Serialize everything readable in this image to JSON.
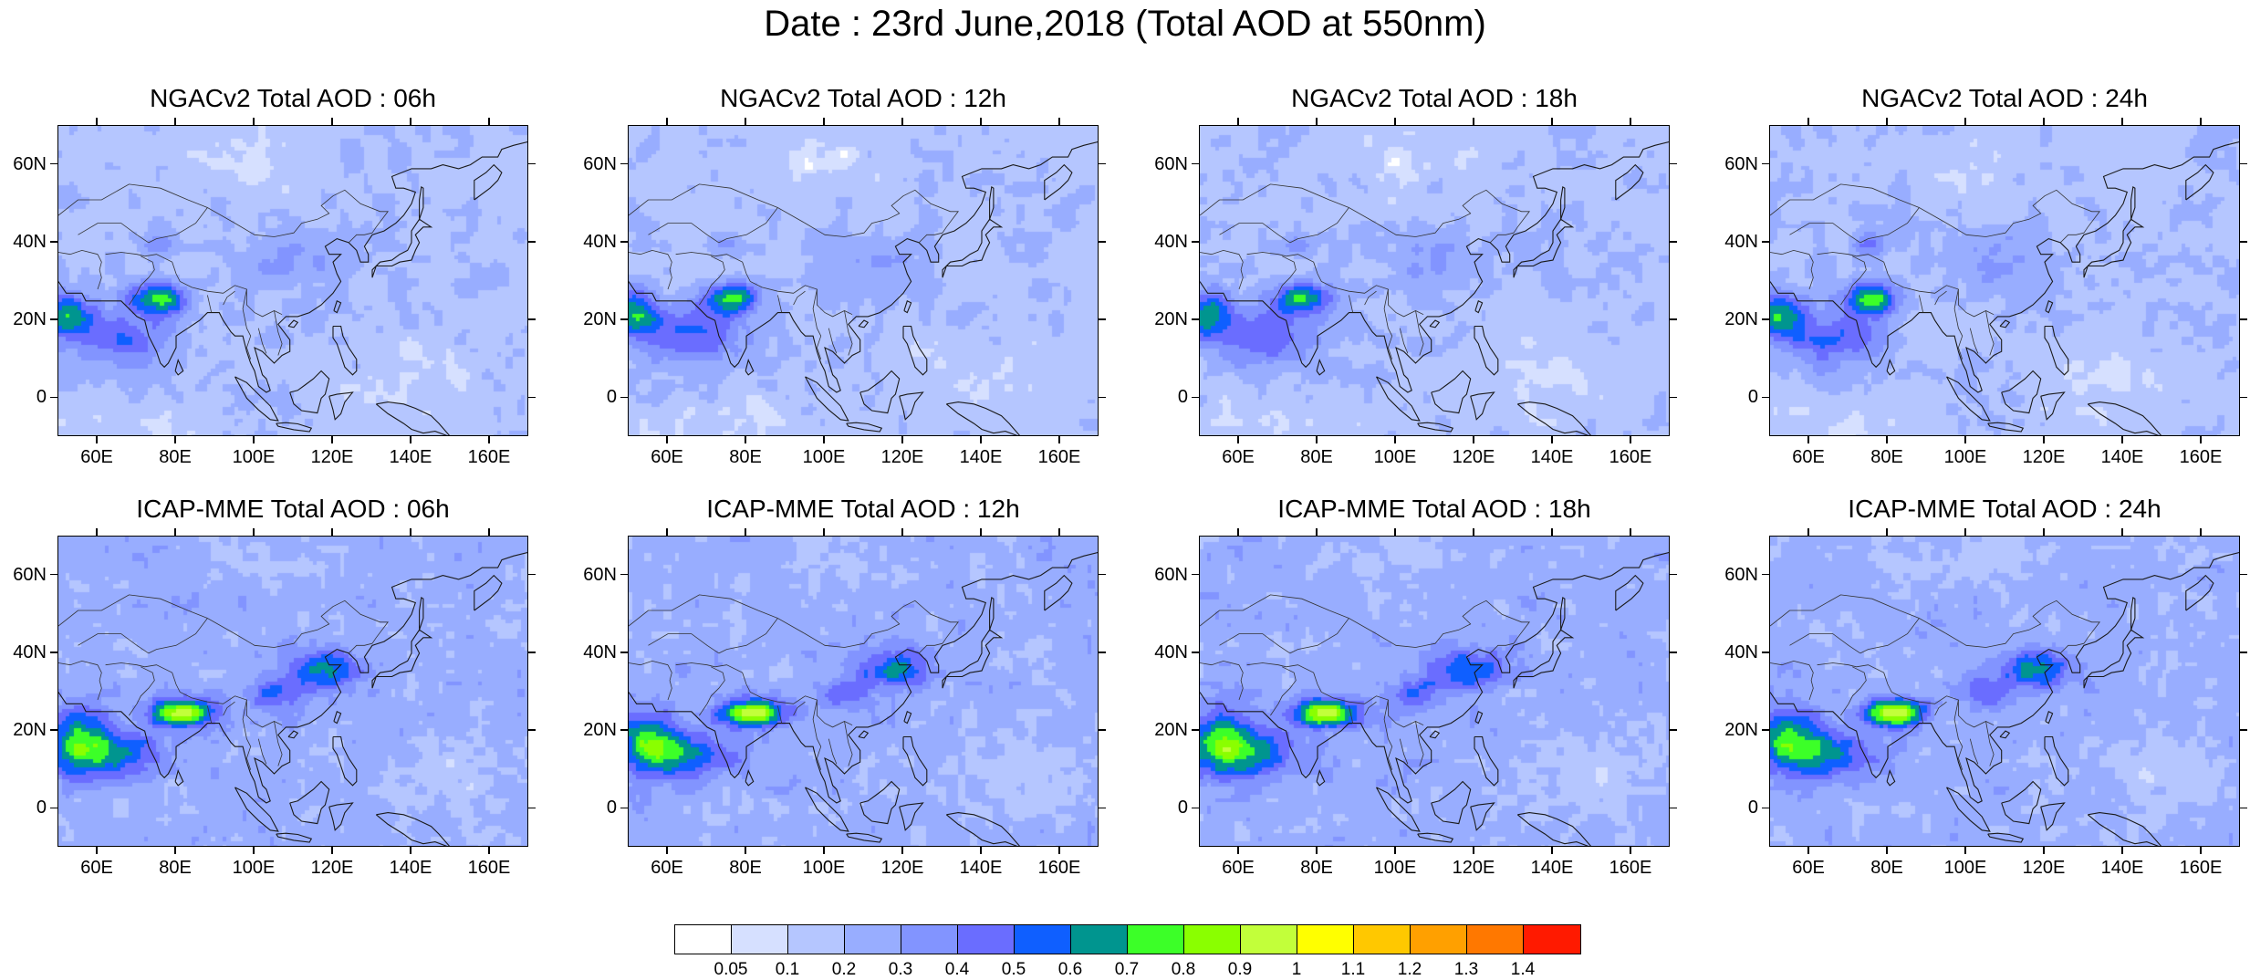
{
  "title": "Date : 23rd June,2018 (Total AOD at 550nm)",
  "panels": [
    {
      "title": "NGACv2 Total AOD : 06h",
      "model": "ngac",
      "hour": 6
    },
    {
      "title": "NGACv2 Total AOD : 12h",
      "model": "ngac",
      "hour": 12
    },
    {
      "title": "NGACv2 Total AOD : 18h",
      "model": "ngac",
      "hour": 18
    },
    {
      "title": "NGACv2 Total AOD : 24h",
      "model": "ngac",
      "hour": 24
    },
    {
      "title": "ICAP-MME Total AOD : 06h",
      "model": "icap",
      "hour": 6
    },
    {
      "title": "ICAP-MME Total AOD : 12h",
      "model": "icap",
      "hour": 12
    },
    {
      "title": "ICAP-MME Total AOD : 18h",
      "model": "icap",
      "hour": 18
    },
    {
      "title": "ICAP-MME Total AOD : 24h",
      "model": "icap",
      "hour": 24
    }
  ],
  "axes": {
    "lon_range": [
      50,
      170
    ],
    "lat_range": [
      -10,
      70
    ],
    "lon_ticks": [
      "60E",
      "80E",
      "100E",
      "120E",
      "140E",
      "160E"
    ],
    "lon_values": [
      60,
      80,
      100,
      120,
      140,
      160
    ],
    "lat_ticks": [
      "60N",
      "40N",
      "20N",
      "0"
    ],
    "lat_values": [
      60,
      40,
      20,
      0
    ]
  },
  "colorbar": {
    "labels": [
      "0.05",
      "0.1",
      "0.2",
      "0.3",
      "0.4",
      "0.5",
      "0.6",
      "0.7",
      "0.8",
      "0.9",
      "1",
      "1.1",
      "1.2",
      "1.3",
      "1.4"
    ],
    "colors": [
      "#ffffff",
      "#d6e0ff",
      "#b5c6ff",
      "#98adff",
      "#8294ff",
      "#6a6dff",
      "#0f5fff",
      "#00958f",
      "#3cff28",
      "#8aff00",
      "#c2ff3a",
      "#ffff00",
      "#ffc800",
      "#ffa000",
      "#ff7800",
      "#ff1a00"
    ]
  }
}
